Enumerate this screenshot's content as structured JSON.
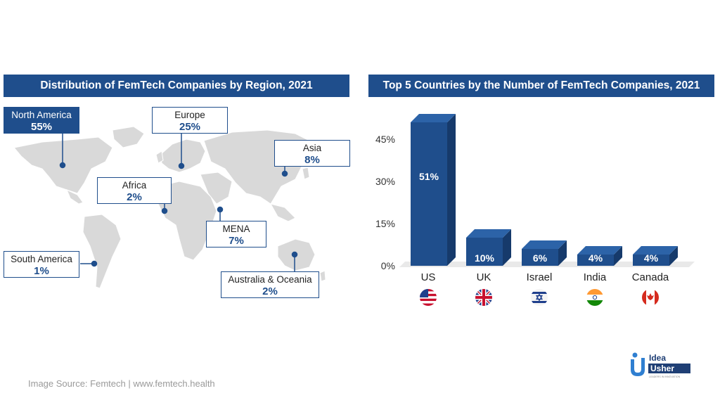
{
  "map_panel": {
    "title": "Distribution of FemTech Companies by Region, 2021",
    "regions": [
      {
        "name": "North America",
        "pct": "55%"
      },
      {
        "name": "Europe",
        "pct": "25%"
      },
      {
        "name": "Asia",
        "pct": "8%"
      },
      {
        "name": "Africa",
        "pct": "2%"
      },
      {
        "name": "MENA",
        "pct": "7%"
      },
      {
        "name": "South America",
        "pct": "1%"
      },
      {
        "name": "Australia & Oceania",
        "pct": "2%"
      }
    ]
  },
  "chart_data": {
    "type": "bar",
    "title": "Top 5 Countries by the Number of FemTech Companies, 2021",
    "categories": [
      "US",
      "UK",
      "Israel",
      "India",
      "Canada"
    ],
    "values": [
      51,
      10,
      6,
      4,
      4
    ],
    "value_labels": [
      "51%",
      "10%",
      "6%",
      "4%",
      "4%"
    ],
    "yticks": [
      "0%",
      "15%",
      "30%",
      "45%"
    ],
    "ytick_values": [
      0,
      15,
      30,
      45
    ],
    "ylim": [
      0,
      51
    ],
    "bar_color": "#1f4e8c",
    "bar_side_color": "#163a6b",
    "bar_top_color": "#2c63a8"
  },
  "footer": {
    "source": "Image Source: Femtech | www.femtech.health",
    "logo_line1": "Idea",
    "logo_line2": "Usher",
    "logo_tagline": "LEADERS IN INNOVATION"
  }
}
